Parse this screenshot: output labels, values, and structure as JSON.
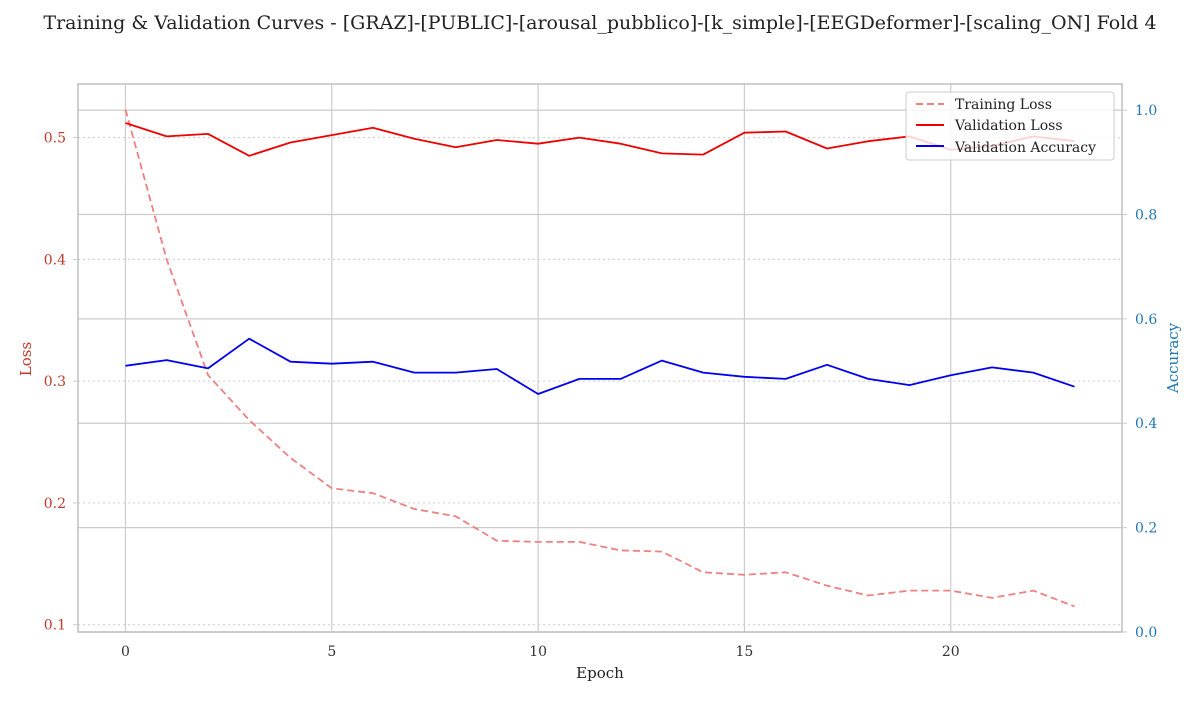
{
  "chart_data": {
    "type": "line",
    "title": "Training & Validation Curves - [GRAZ]-[PUBLIC]-[arousal_pubblico]-[k_simple]-[EEGDeformer]-[scaling_ON] Fold 4",
    "xlabel": "Epoch",
    "ylabel_left": "Loss",
    "ylabel_right": "Accuracy",
    "x": [
      0,
      1,
      2,
      3,
      4,
      5,
      6,
      7,
      8,
      9,
      10,
      11,
      12,
      13,
      14,
      15,
      16,
      17,
      18,
      19,
      20,
      21,
      22,
      23
    ],
    "x_ticks": [
      0,
      5,
      10,
      15,
      20
    ],
    "y_left_ticks": [
      0.1,
      0.2,
      0.3,
      0.4,
      0.5
    ],
    "y_right_ticks": [
      0.0,
      0.2,
      0.4,
      0.6,
      0.8,
      1.0
    ],
    "xlim": [
      -1.15,
      24.15
    ],
    "ylim_left": [
      0.094,
      0.544
    ],
    "ylim_right": [
      0.0,
      1.05
    ],
    "grid": true,
    "legend_position": "top-right",
    "colors": {
      "training_loss": "#f08080",
      "validation_loss": "#ee0000",
      "validation_accuracy": "#0000ee",
      "left_axis": "#c0392b",
      "right_axis": "#1f77b4",
      "grid": "#cccccc",
      "frame": "#bbbbbb"
    },
    "series": [
      {
        "name": "Training Loss",
        "axis": "left",
        "style": "dashed",
        "values": [
          0.523,
          0.4,
          0.305,
          0.268,
          0.237,
          0.212,
          0.208,
          0.195,
          0.189,
          0.169,
          0.168,
          0.168,
          0.161,
          0.16,
          0.143,
          0.141,
          0.143,
          0.132,
          0.124,
          0.128,
          0.128,
          0.122,
          0.128,
          0.115
        ]
      },
      {
        "name": "Validation Loss",
        "axis": "left",
        "style": "solid",
        "values": [
          0.512,
          0.501,
          0.503,
          0.485,
          0.496,
          0.502,
          0.508,
          0.499,
          0.492,
          0.498,
          0.495,
          0.5,
          0.495,
          0.487,
          0.486,
          0.504,
          0.505,
          0.491,
          0.497,
          0.501,
          0.49,
          0.493,
          0.501,
          0.497
        ]
      },
      {
        "name": "Validation Accuracy",
        "axis": "right",
        "style": "solid",
        "values": [
          0.51,
          0.521,
          0.505,
          0.562,
          0.518,
          0.514,
          0.518,
          0.497,
          0.497,
          0.504,
          0.456,
          0.485,
          0.485,
          0.52,
          0.497,
          0.489,
          0.485,
          0.512,
          0.485,
          0.473,
          0.492,
          0.507,
          0.497,
          0.47
        ]
      }
    ]
  }
}
